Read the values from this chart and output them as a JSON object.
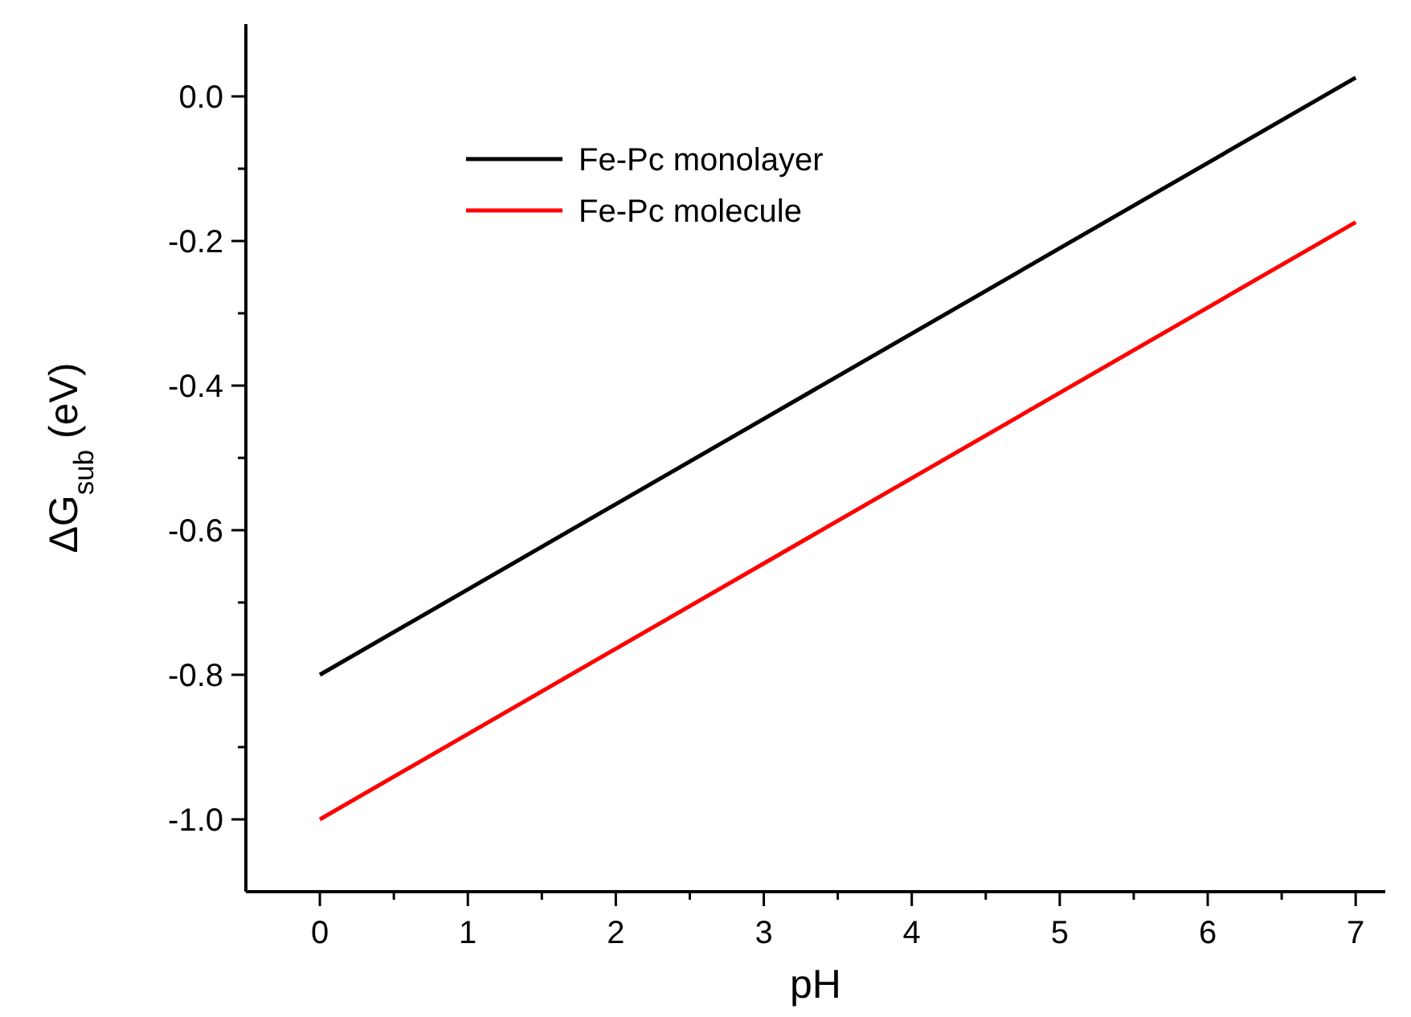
{
  "chart_data": {
    "type": "line",
    "xlabel": "pH",
    "ylabel": "ΔG$_{sub}$ (eV)",
    "x": [
      0,
      7
    ],
    "series": [
      {
        "name": "Fe-Pc monolayer",
        "color": "#000000",
        "values": [
          -0.8,
          0.026
        ]
      },
      {
        "name": "Fe-Pc molecule",
        "color": "#ff0000",
        "values": [
          -1.0,
          -0.174
        ]
      }
    ],
    "xlim": [
      -0.5,
      7.2
    ],
    "xticks": [
      0,
      {
        "value": 0.5,
        "label": null
      },
      1,
      {
        "value": 1.5,
        "label": null
      },
      2,
      {
        "value": 2.5,
        "label": null
      },
      3,
      {
        "value": 3.5,
        "label": null
      },
      4,
      {
        "value": 4.5,
        "label": null
      },
      5,
      {
        "value": 5.5,
        "label": null
      },
      6,
      {
        "value": 6.5,
        "label": null
      },
      7
    ],
    "ylim": [
      -1.1,
      0.1
    ],
    "yticks": [
      {
        "value": -1.0,
        "label": "-1.0"
      },
      {
        "value": -0.9,
        "label": null
      },
      {
        "value": -0.8,
        "label": "-0.8"
      },
      {
        "value": -0.7,
        "label": null
      },
      {
        "value": -0.6,
        "label": "-0.6"
      },
      {
        "value": -0.5,
        "label": null
      },
      {
        "value": -0.4,
        "label": "-0.4"
      },
      {
        "value": -0.3,
        "label": null
      },
      {
        "value": -0.2,
        "label": "-0.2"
      },
      {
        "value": -0.1,
        "label": null
      },
      {
        "value": 0.0,
        "label": "0.0"
      }
    ],
    "grid": false,
    "legend": "top left",
    "line_style": "solid"
  }
}
